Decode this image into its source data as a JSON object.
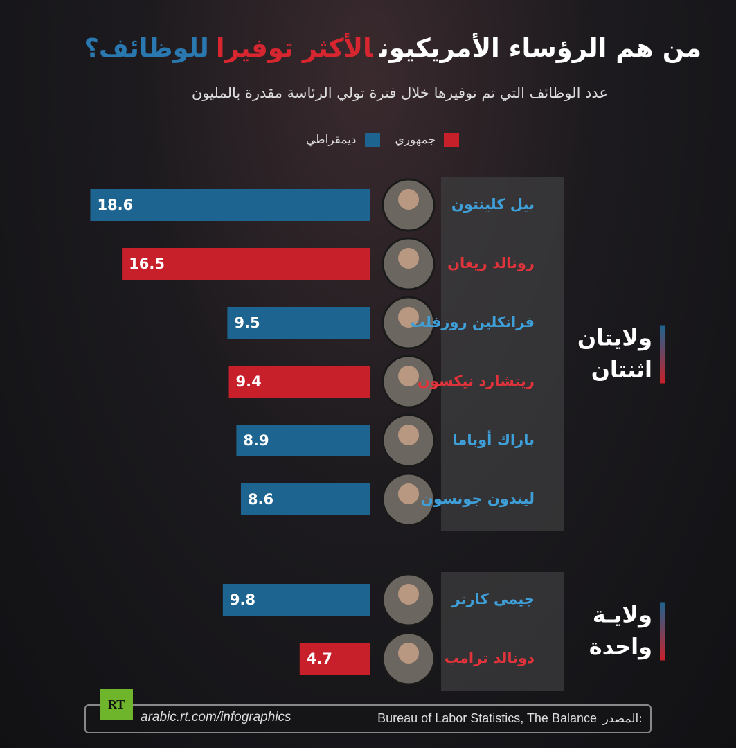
{
  "chart_data": {
    "type": "bar",
    "title_parts": [
      {
        "text": "من هم الرؤساء الأمريكيون",
        "color": "#ffffff"
      },
      {
        "text": "الأكثر توفيرا",
        "color": "#d7262f"
      },
      {
        "text": "للوظائف؟",
        "color": "#2a78b0"
      }
    ],
    "subtitle": "عدد الوظائف التي تم توفيرها خلال فترة تولي الرئاسة مقدرة بالمليون",
    "groups": [
      {
        "label": [
          "ولايتان",
          "اثنتان"
        ],
        "categories": [
          "بيل كلينتون",
          "رونالد ريغان",
          "فرانكلين روزفلت",
          "ريتشارد نيكسون",
          "باراك أوباما",
          "ليندون جونسون"
        ]
      },
      {
        "label": [
          "ولايـة",
          "واحدة"
        ],
        "categories": [
          "جيمي كارتر",
          "دونالد ترامب"
        ]
      }
    ],
    "series": [
      {
        "name": "جمهوري",
        "color": "#c8202a",
        "values": [
          null,
          16.5,
          null,
          9.4,
          null,
          null,
          null,
          4.7
        ]
      },
      {
        "name": "ديمقراطي",
        "color": "#1d6590",
        "values": [
          18.6,
          null,
          9.5,
          null,
          8.9,
          8.6,
          9.8,
          null
        ]
      }
    ],
    "xlim": [
      0,
      20
    ],
    "footer": {
      "logo": "RT",
      "url": "arabic.rt.com/infographics",
      "source_label": "المصدر:",
      "source": "Bureau of Labor Statistics, The Balance"
    }
  }
}
